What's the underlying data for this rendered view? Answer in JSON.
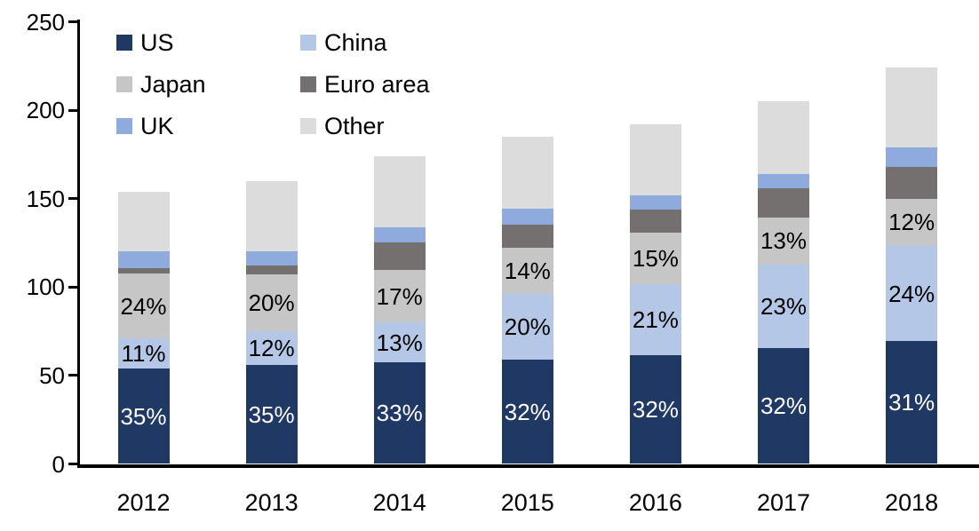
{
  "chart_data": {
    "type": "bar",
    "stacked": true,
    "title": "",
    "categories": [
      "2012",
      "2013",
      "2014",
      "2015",
      "2016",
      "2017",
      "2018"
    ],
    "totals_estimated": [
      154,
      160,
      174,
      185,
      192,
      205,
      224
    ],
    "ylim": [
      0,
      250
    ],
    "yticks": [
      "0",
      "50",
      "100",
      "150",
      "200",
      "250"
    ],
    "grid": false,
    "legend_position": "top-left",
    "legend_order": [
      "US",
      "China",
      "Japan",
      "Euro area",
      "UK",
      "Other"
    ],
    "series": [
      {
        "name": "US",
        "color": "#1f3864",
        "pct": [
          35,
          35,
          33,
          32,
          32,
          32,
          31
        ],
        "show_pct_labels": true,
        "label_color": "#ffffff"
      },
      {
        "name": "China",
        "color": "#b4c7e7",
        "pct": [
          11,
          12,
          13,
          20,
          21,
          23,
          24
        ],
        "show_pct_labels": true,
        "label_color": "#000000"
      },
      {
        "name": "Japan",
        "color": "#c6c6c6",
        "pct": [
          24,
          20,
          17,
          14,
          15,
          13,
          12
        ],
        "show_pct_labels": true,
        "label_color": "#000000"
      },
      {
        "name": "Euro area",
        "color": "#757070",
        "pct": [
          2,
          3,
          9,
          7,
          7,
          8,
          8
        ],
        "show_pct_labels": false,
        "label_color": "#000000"
      },
      {
        "name": "UK",
        "color": "#8faadc",
        "pct": [
          6,
          5,
          5,
          5,
          4,
          4,
          5
        ],
        "show_pct_labels": false,
        "label_color": "#000000"
      },
      {
        "name": "Other",
        "color": "#dcdcdc",
        "pct": [
          22,
          25,
          23,
          22,
          21,
          20,
          20
        ],
        "show_pct_labels": false,
        "label_color": "#000000"
      }
    ],
    "pct_label_suffix": "%"
  }
}
